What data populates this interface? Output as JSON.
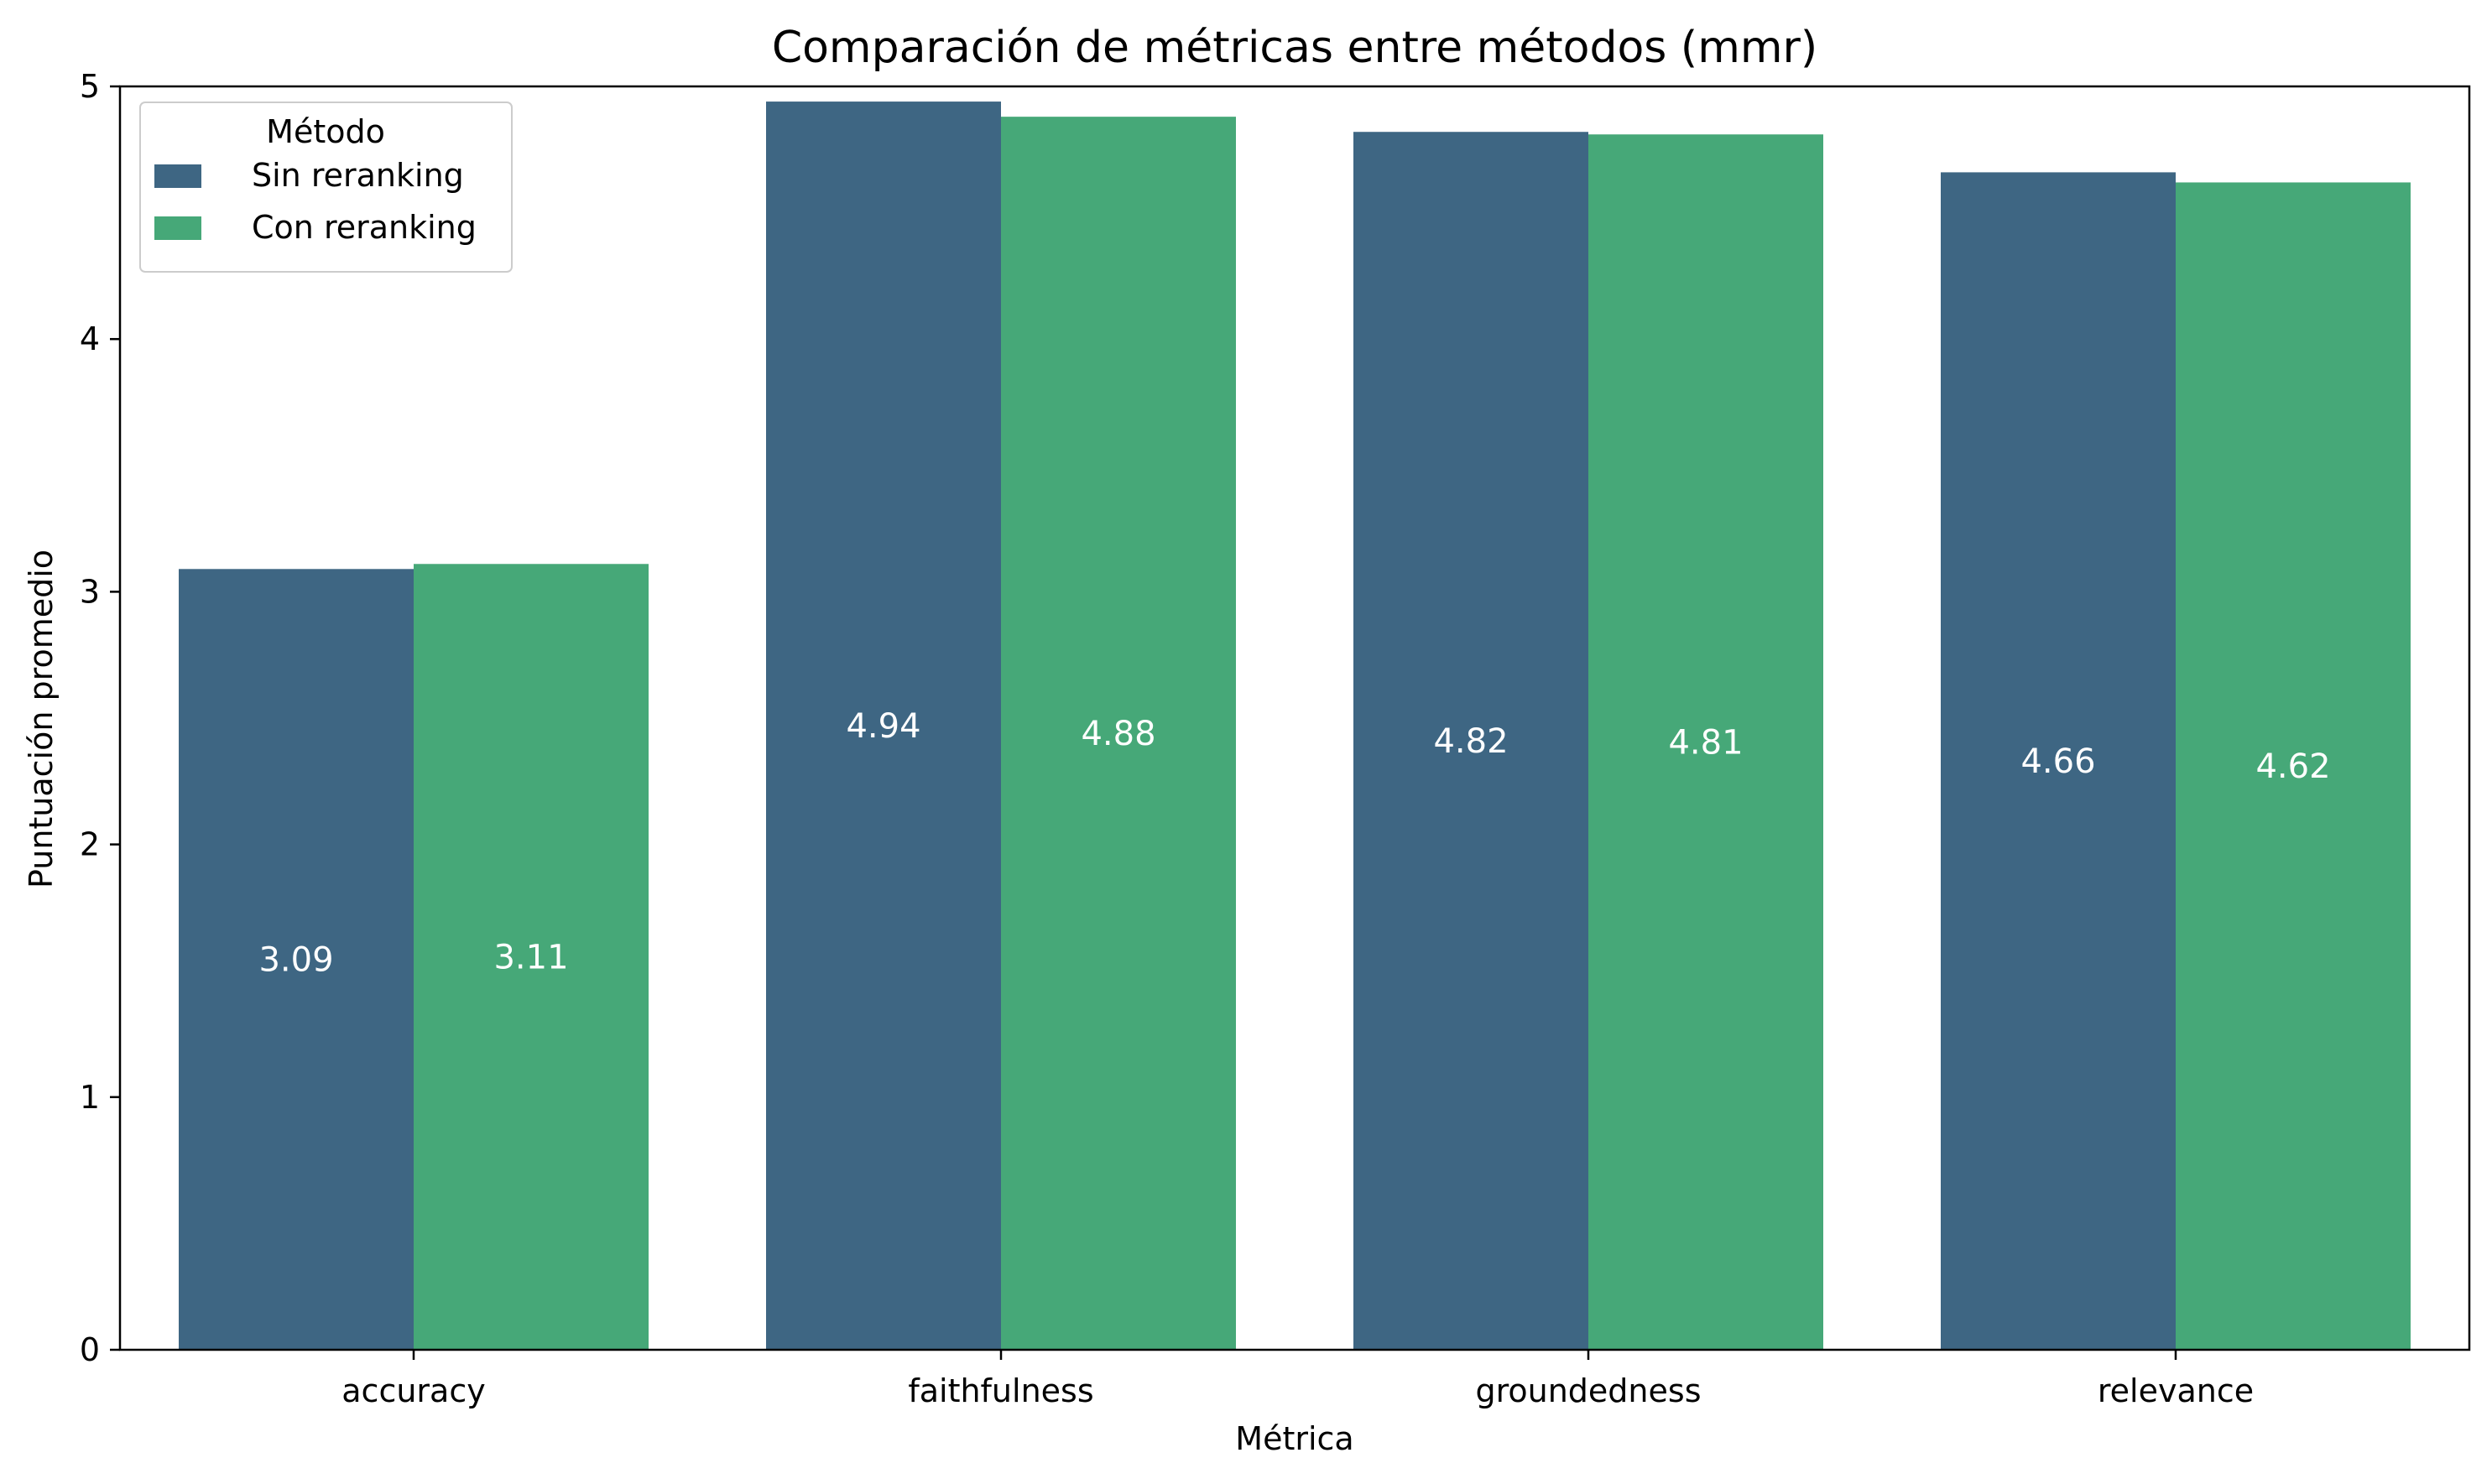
{
  "chart_data": {
    "type": "bar",
    "title": "Comparación de métricas entre métodos (mmr)",
    "xlabel": "Métrica",
    "ylabel": "Puntuación promedio",
    "categories": [
      "accuracy",
      "faithfulness",
      "groundedness",
      "relevance"
    ],
    "ylim": [
      0,
      5
    ],
    "yticks": [
      0,
      1,
      2,
      3,
      4,
      5
    ],
    "grid": false,
    "legend": {
      "title": "Método",
      "placement": "top-left"
    },
    "series": [
      {
        "name": "Sin reranking",
        "color": "#3e6683",
        "values": [
          3.09,
          4.94,
          4.82,
          4.66
        ],
        "labels": [
          "3.09",
          "4.94",
          "4.82",
          "4.66"
        ]
      },
      {
        "name": "Con reranking",
        "color": "#46a878",
        "values": [
          3.11,
          4.88,
          4.81,
          4.62
        ],
        "labels": [
          "3.11",
          "4.88",
          "4.81",
          "4.62"
        ]
      }
    ]
  }
}
